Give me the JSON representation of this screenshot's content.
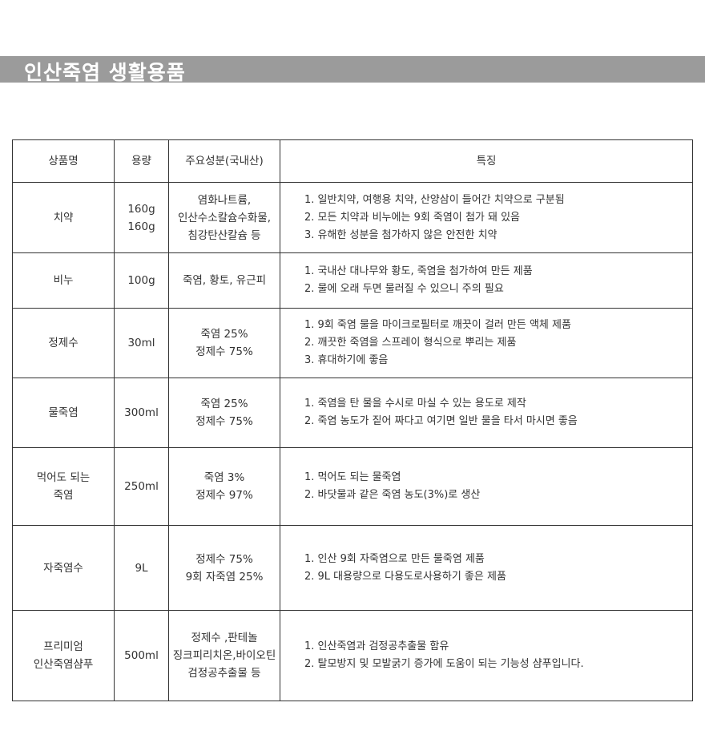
{
  "title": "인산죽염 생활용품",
  "headers": [
    "상품명",
    "용량",
    "주요성분(국내산)",
    "특징"
  ],
  "rows": [
    {
      "name": [
        "치약"
      ],
      "volume": [
        "160g",
        "160g"
      ],
      "ingredients": [
        "염화나트륨,",
        "인산수소칼슘수화물,",
        "침강탄산칼슘 등"
      ],
      "features": [
        "1. 일반치약, 여행용 치약, 산양삼이 들어간 치약으로 구분됨",
        "2. 모든 치약과 비누에는 9회 죽염이 첨가 돼 있음",
        "3. 유해한 성분을 첨가하지 않은 안전한 치약"
      ]
    },
    {
      "name": [
        "비누"
      ],
      "volume": [
        "100g"
      ],
      "ingredients": [
        "죽염, 황토, 유근피"
      ],
      "features": [
        "1. 국내산 대나무와 황도, 죽염을 첨가하여 만든 제품",
        "2. 물에 오래 두면 물러질 수 있으니 주의 필요"
      ]
    },
    {
      "name": [
        "정제수"
      ],
      "volume": [
        "30ml"
      ],
      "ingredients": [
        "죽염 25%",
        "정제수 75%"
      ],
      "features": [
        "1. 9회 죽염 물을 마이크로필터로 깨끗이 걸러 만든 액체 제품",
        "2. 깨끗한 죽염을 스프레이 형식으로 뿌리는 제품",
        "3. 휴대하기에 좋음"
      ]
    },
    {
      "name": [
        "물죽염"
      ],
      "volume": [
        "300ml"
      ],
      "ingredients": [
        "죽염 25%",
        "정제수 75%"
      ],
      "features": [
        "1. 죽염을 탄 물을 수시로 마실 수 있는 용도로 제작",
        "2. 죽염 농도가 짙어 짜다고 여기면 일반 물을 타서 마시면 좋음"
      ]
    },
    {
      "name": [
        "먹어도 되는",
        "죽염"
      ],
      "volume": [
        "250ml"
      ],
      "ingredients": [
        "죽염 3%",
        "정제수 97%"
      ],
      "features": [
        "1. 먹어도 되는 물죽염",
        "2. 바닷물과 같은 죽염 농도(3%)로 생산"
      ]
    },
    {
      "name": [
        "자죽염수"
      ],
      "volume": [
        "9L"
      ],
      "ingredients": [
        "정제수 75%",
        "9회 자죽염 25%"
      ],
      "features": [
        "1. 인산 9회 자죽염으로 만든 물죽염 제품",
        "2. 9L 대용량으로 다용도로사용하기 좋은 제품"
      ]
    },
    {
      "name": [
        "프리미엄",
        "인산죽염샴푸"
      ],
      "volume": [
        "500ml"
      ],
      "ingredients": [
        "정제수 ,판테놀",
        "징크피리치온,바이오틴",
        "검정공추출물 등"
      ],
      "features": [
        "1. 인산죽염과 검정공추출물 함유",
        "2. 탈모방지 및 모발굵기 증가에 도움이 되는 기능성 샴푸입니다."
      ]
    }
  ]
}
